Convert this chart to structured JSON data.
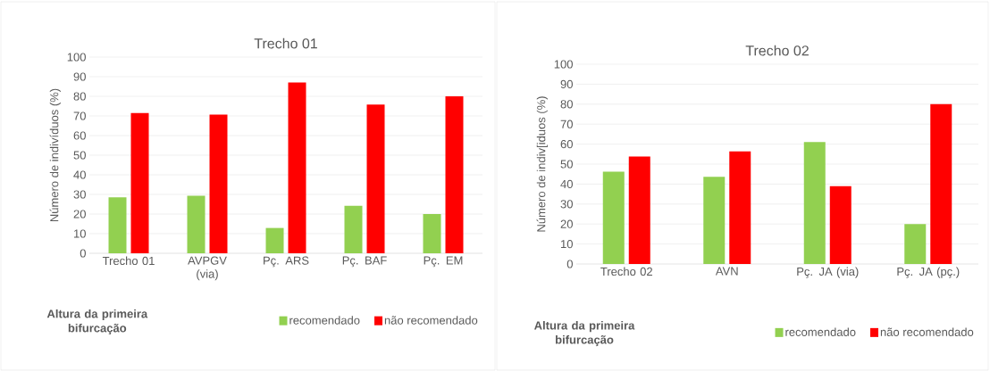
{
  "chart_data": [
    {
      "type": "bar",
      "title": "Trecho 01",
      "ylabel": "Número de indivíduos (%)",
      "legend_title": "Altura da primeira bifurcação",
      "categories": [
        "Trecho 01",
        "AVPGV (via)",
        "Pç. ARS",
        "Pç. BAF",
        "Pç. EM"
      ],
      "series": [
        {
          "name": "recomendado",
          "color": "#92d050",
          "values": [
            28.5,
            29.3,
            12.9,
            24.2,
            20
          ]
        },
        {
          "name": "não recomendado",
          "color": "#ff0000",
          "values": [
            71.5,
            70.7,
            87.1,
            75.8,
            80
          ]
        }
      ],
      "ylim": [
        0,
        100
      ],
      "yticks": [
        0,
        10,
        20,
        30,
        40,
        50,
        60,
        70,
        80,
        90,
        100
      ],
      "grid": "y",
      "legend": "bottom"
    },
    {
      "type": "bar",
      "title": "Trecho 02",
      "ylabel": "Número de indiv[iduos (%)",
      "legend_title": "Altura da primeira bifurcação",
      "categories": [
        "Trecho 02",
        "AVN",
        "Pç. JA (via)",
        "Pç. JA (pç.)"
      ],
      "series": [
        {
          "name": "recomendado",
          "color": "#92d050",
          "values": [
            46.2,
            43.6,
            61,
            20
          ]
        },
        {
          "name": "não recomendado",
          "color": "#ff0000",
          "values": [
            53.8,
            56.4,
            39,
            80
          ]
        }
      ],
      "ylim": [
        0,
        100
      ],
      "yticks": [
        0,
        10,
        20,
        30,
        40,
        50,
        60,
        70,
        80,
        90,
        100
      ],
      "grid": "y",
      "legend": "bottom"
    }
  ]
}
